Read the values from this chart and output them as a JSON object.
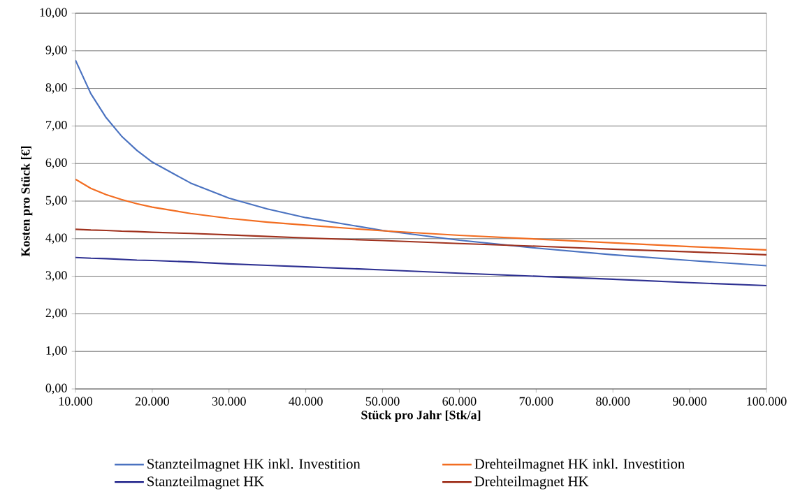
{
  "chart_data": {
    "type": "line",
    "xlabel": "Stück pro Jahr [Stk/a]",
    "ylabel": "Kosten pro Stück [€]",
    "xlim": [
      10000,
      100000
    ],
    "ylim": [
      0,
      10
    ],
    "xticks": [
      {
        "value": 10000,
        "label": "10.000"
      },
      {
        "value": 20000,
        "label": "20.000"
      },
      {
        "value": 30000,
        "label": "30.000"
      },
      {
        "value": 40000,
        "label": "40.000"
      },
      {
        "value": 50000,
        "label": "50.000"
      },
      {
        "value": 60000,
        "label": "60.000"
      },
      {
        "value": 70000,
        "label": "70.000"
      },
      {
        "value": 80000,
        "label": "80.000"
      },
      {
        "value": 90000,
        "label": "90.000"
      },
      {
        "value": 100000,
        "label": "100.000"
      }
    ],
    "yticks": [
      {
        "value": 0,
        "label": "0,00"
      },
      {
        "value": 1,
        "label": "1,00"
      },
      {
        "value": 2,
        "label": "2,00"
      },
      {
        "value": 3,
        "label": "3,00"
      },
      {
        "value": 4,
        "label": "4,00"
      },
      {
        "value": 5,
        "label": "5,00"
      },
      {
        "value": 6,
        "label": "6,00"
      },
      {
        "value": 7,
        "label": "7,00"
      },
      {
        "value": 8,
        "label": "8,00"
      },
      {
        "value": 9,
        "label": "9,00"
      },
      {
        "value": 10,
        "label": "10,00"
      }
    ],
    "grid": "y",
    "legend": "bottom",
    "marker": "none",
    "line_style": "solid",
    "x": [
      10000,
      12000,
      14000,
      16000,
      18000,
      20000,
      25000,
      30000,
      35000,
      40000,
      50000,
      60000,
      70000,
      80000,
      90000,
      100000
    ],
    "series": [
      {
        "name": "Stanzteilmagnet HK inkl. Investition",
        "color": "#4a72c0",
        "values": [
          8.75,
          7.86,
          7.22,
          6.73,
          6.35,
          6.04,
          5.48,
          5.08,
          4.79,
          4.56,
          4.22,
          3.96,
          3.75,
          3.57,
          3.42,
          3.28
        ]
      },
      {
        "name": "Drehteilmagnet HK inkl. Investition",
        "color": "#f26d21",
        "values": [
          5.58,
          5.34,
          5.17,
          5.04,
          4.93,
          4.84,
          4.67,
          4.54,
          4.44,
          4.36,
          4.21,
          4.09,
          3.99,
          3.89,
          3.79,
          3.7
        ]
      },
      {
        "name": "Stanzteilmagnet HK",
        "color": "#2e3192",
        "values": [
          3.5,
          3.48,
          3.47,
          3.45,
          3.43,
          3.42,
          3.38,
          3.33,
          3.29,
          3.25,
          3.17,
          3.08,
          3.0,
          2.92,
          2.83,
          2.75
        ]
      },
      {
        "name": "Drehteilmagnet HK",
        "color": "#a0321e",
        "values": [
          4.25,
          4.23,
          4.22,
          4.2,
          4.19,
          4.17,
          4.14,
          4.1,
          4.06,
          4.02,
          3.95,
          3.87,
          3.8,
          3.72,
          3.65,
          3.57
        ]
      }
    ]
  }
}
